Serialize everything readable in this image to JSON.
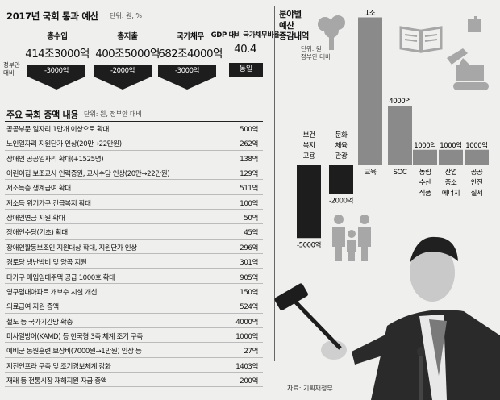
{
  "summary": {
    "title": "2017년 국회 통과 예산",
    "unit": "단위: 원, %",
    "columns": [
      {
        "label": "총수입",
        "value": "414조3000억",
        "change": "-3000억"
      },
      {
        "label": "총지출",
        "value": "400조5000억",
        "change": "-2000억"
      },
      {
        "label": "국가채무",
        "value": "682조4000억",
        "change": "-3000억"
      },
      {
        "label": "GDP 대비 국가채무비율",
        "value": "40.4",
        "change": "동일"
      }
    ],
    "gov_note_line1": "정부안",
    "gov_note_line2": "대비"
  },
  "table": {
    "title": "주요 국회 증액 내용",
    "unit": "단위: 원, 정부안 대비",
    "rows": [
      {
        "item": "공공부문 일자리 1만개 이상으로 확대",
        "amount": "500억"
      },
      {
        "item": "노인일자리 지원단가 인상(20만→22만원)",
        "amount": "262억"
      },
      {
        "item": "장애인 공공일자리 확대(+1525명)",
        "amount": "138억"
      },
      {
        "item": "어린이집 보조교사 인력증원, 교사수당 인상(20만→22만원)",
        "amount": "129억"
      },
      {
        "item": "저소득층 생계급여 확대",
        "amount": "511억"
      },
      {
        "item": "저소득 위기가구 긴급복지 확대",
        "amount": "100억"
      },
      {
        "item": "장애인연금 지원 확대",
        "amount": "50억"
      },
      {
        "item": "장애인수당(기초) 확대",
        "amount": "45억"
      },
      {
        "item": "장애인활동보조인 지원대상 확대, 지원단가 인상",
        "amount": "296억"
      },
      {
        "item": "경로당 냉난방비 및 양곡 지원",
        "amount": "301억"
      },
      {
        "item": "다가구 매입임대주택 공급 1000호 확대",
        "amount": "905억"
      },
      {
        "item": "영구임대아파트 개보수 시설 개선",
        "amount": "150억"
      },
      {
        "item": "의료급여 지원 증액",
        "amount": "524억"
      },
      {
        "item": "철도 등 국가기간망 확충",
        "amount": "4000억"
      },
      {
        "item": "미사일방어(KAMD) 등 한국형 3축 체계 조기 구축",
        "amount": "1000억"
      },
      {
        "item": "예비군 동원훈련 보상비(7000원→1만원) 인상 등",
        "amount": "27억"
      },
      {
        "item": "지진인프라 구축 및 조기경보체계 강화",
        "amount": "1403억"
      },
      {
        "item": "재래 등 전통시장 재해지원 자금 증액",
        "amount": "200억"
      }
    ]
  },
  "right_panel": {
    "title_line1": "분야별",
    "title_line2": "예산",
    "title_line3": "증감내역",
    "unit_line1": "단위: 원",
    "unit_line2": "정부안 대비",
    "source": "자료: 기획재정부"
  },
  "chart_data": {
    "type": "bar",
    "title": "분야별 예산 증감내역",
    "unit": "단위: 원, 정부안 대비",
    "categories": [
      "보건복지고용",
      "문화체육관광",
      "교육",
      "SOC",
      "농림수산식품",
      "산업중소에너지",
      "공공안전질서"
    ],
    "category_label_lines": [
      [
        "보건",
        "복지",
        "고용"
      ],
      [
        "문화",
        "체육",
        "관광"
      ],
      [
        "교육"
      ],
      [
        "SOC"
      ],
      [
        "농림",
        "수산",
        "식품"
      ],
      [
        "산업",
        "중소",
        "에너지"
      ],
      [
        "공공",
        "안전",
        "질서"
      ]
    ],
    "values_eok": [
      -5000,
      -2000,
      10000,
      4000,
      1000,
      1000,
      1000
    ],
    "value_labels": [
      "-5000억",
      "-2000억",
      "1조",
      "4000억",
      "1000억",
      "1000억",
      "1000억"
    ],
    "bar_color": "#8a8a8a",
    "negative_bar_color": "#1d1d1d"
  },
  "icons": [
    "book-icon",
    "excavator-icon",
    "tree-icon",
    "family-icon",
    "gavel-icon"
  ],
  "colors": {
    "background": "#efefed",
    "dark": "#1d1d1d",
    "bar": "#8a8a8a",
    "icon": "#a7a7a7"
  }
}
